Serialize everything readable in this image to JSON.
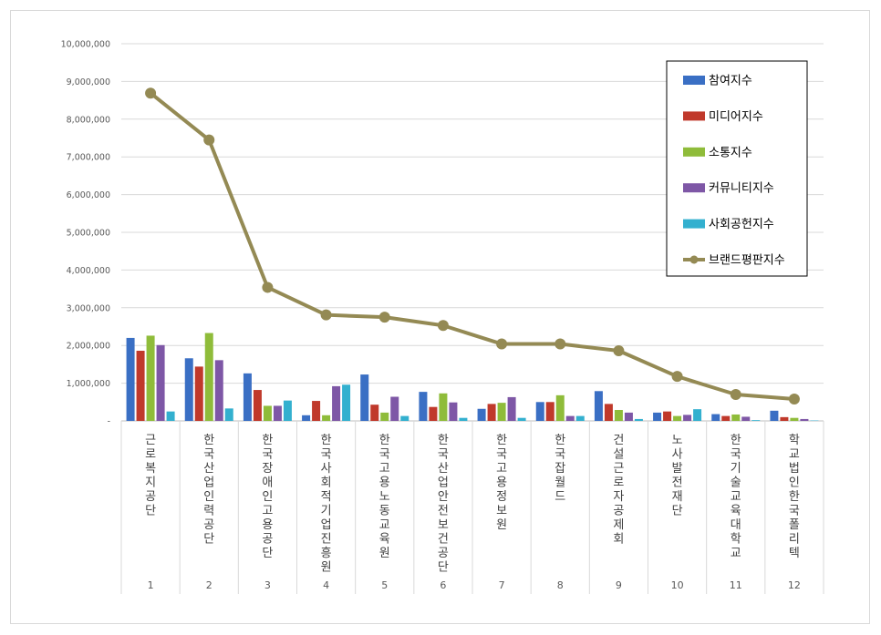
{
  "chart_data": {
    "type": "bar",
    "title": "",
    "xlabel": "",
    "ylabel": "",
    "ylim": [
      0,
      10000000
    ],
    "yticks": [
      "-",
      "1,000,000",
      "2,000,000",
      "3,000,000",
      "4,000,000",
      "5,000,000",
      "6,000,000",
      "7,000,000",
      "8,000,000",
      "9,000,000",
      "10,000,000"
    ],
    "categories": [
      "근로복지공단",
      "한국산업인력공단",
      "한국장애인고용공단",
      "한국사회적기업진흥원",
      "한국고용노동교육원",
      "한국산업안전보건공단",
      "한국고용정보원",
      "한국잡월드",
      "건설근로자공제회",
      "노사발전재단",
      "한국기술교육대학교",
      "학교법인한국폴리텍"
    ],
    "ranks": [
      "1",
      "2",
      "3",
      "4",
      "5",
      "6",
      "7",
      "8",
      "9",
      "10",
      "11",
      "12"
    ],
    "grid": true,
    "legend_position": "top-right",
    "series": [
      {
        "name": "참여지수",
        "kind": "bar",
        "color": "#3a6fc4",
        "values": [
          2200000,
          1660000,
          1260000,
          150000,
          1230000,
          770000,
          320000,
          500000,
          790000,
          220000,
          180000,
          270000
        ]
      },
      {
        "name": "미디어지수",
        "kind": "bar",
        "color": "#c0392b",
        "values": [
          1860000,
          1440000,
          820000,
          530000,
          430000,
          370000,
          450000,
          500000,
          450000,
          250000,
          130000,
          100000
        ]
      },
      {
        "name": "소통지수",
        "kind": "bar",
        "color": "#8fbc3a",
        "values": [
          2260000,
          2330000,
          400000,
          150000,
          220000,
          730000,
          480000,
          680000,
          290000,
          130000,
          170000,
          80000
        ]
      },
      {
        "name": "커뮤니티지수",
        "kind": "bar",
        "color": "#7e57a6",
        "values": [
          2010000,
          1610000,
          400000,
          920000,
          640000,
          490000,
          630000,
          130000,
          220000,
          160000,
          110000,
          50000
        ]
      },
      {
        "name": "사회공헌지수",
        "kind": "bar",
        "color": "#33b0cf",
        "values": [
          250000,
          330000,
          540000,
          960000,
          130000,
          80000,
          80000,
          130000,
          50000,
          310000,
          20000,
          10000
        ]
      },
      {
        "name": "브랜드평판지수",
        "kind": "line",
        "color": "#948a54",
        "values": [
          8690000,
          7450000,
          3540000,
          2810000,
          2750000,
          2530000,
          2040000,
          2040000,
          1860000,
          1180000,
          700000,
          580000
        ]
      }
    ]
  }
}
